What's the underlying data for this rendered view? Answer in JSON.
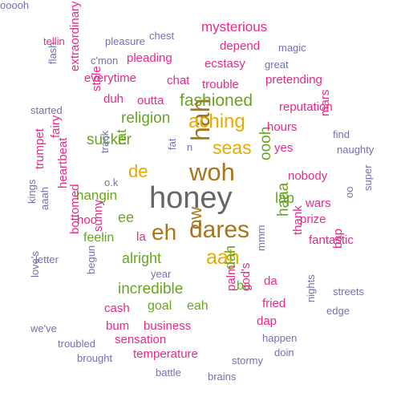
{
  "palette": {
    "magenta": "#e7298a",
    "purple": "#7570b3",
    "green": "#66a61e",
    "gold": "#e6ab02",
    "brown": "#a6761d",
    "gray": "#666666"
  },
  "words": [
    {
      "text": "honey",
      "color": "gray"
    },
    {
      "text": "woh",
      "color": "brown"
    },
    {
      "text": "hah",
      "color": "brown"
    },
    {
      "text": "dares",
      "color": "brown"
    },
    {
      "text": "eh",
      "color": "brown"
    },
    {
      "text": "aah",
      "color": "gold"
    },
    {
      "text": "aching",
      "color": "gold"
    },
    {
      "text": "seas",
      "color": "gold"
    },
    {
      "text": "de",
      "color": "gold"
    },
    {
      "text": "ow",
      "color": "brown"
    },
    {
      "text": "fashioned",
      "color": "green"
    },
    {
      "text": "religion",
      "color": "green"
    },
    {
      "text": "sucker",
      "color": "green"
    },
    {
      "text": "hangin",
      "color": "green"
    },
    {
      "text": "alright",
      "color": "green"
    },
    {
      "text": "incredible",
      "color": "green"
    },
    {
      "text": "haaa",
      "color": "green"
    },
    {
      "text": "oooh",
      "color": "green"
    },
    {
      "text": "dah",
      "color": "green"
    },
    {
      "text": "lap",
      "color": "green"
    },
    {
      "text": "ee",
      "color": "green"
    },
    {
      "text": "feelin",
      "color": "green"
    },
    {
      "text": "ba",
      "color": "green"
    },
    {
      "text": "eah",
      "color": "green"
    },
    {
      "text": "goal",
      "color": "green"
    },
    {
      "text": "rat",
      "color": "green"
    },
    {
      "text": "mysterious",
      "color": "magenta"
    },
    {
      "text": "depend",
      "color": "magenta"
    },
    {
      "text": "pleading",
      "color": "magenta"
    },
    {
      "text": "ecstasy",
      "color": "magenta"
    },
    {
      "text": "everytime",
      "color": "magenta"
    },
    {
      "text": "chat",
      "color": "magenta"
    },
    {
      "text": "trouble",
      "color": "magenta"
    },
    {
      "text": "pretending",
      "color": "magenta"
    },
    {
      "text": "duh",
      "color": "magenta"
    },
    {
      "text": "outta",
      "color": "magenta"
    },
    {
      "text": "reputation",
      "color": "magenta"
    },
    {
      "text": "hours",
      "color": "magenta"
    },
    {
      "text": "yes",
      "color": "magenta"
    },
    {
      "text": "nobody",
      "color": "magenta"
    },
    {
      "text": "wars",
      "color": "magenta"
    },
    {
      "text": "prize",
      "color": "magenta"
    },
    {
      "text": "fantastic",
      "color": "magenta"
    },
    {
      "text": "thank",
      "color": "magenta"
    },
    {
      "text": "hoo",
      "color": "magenta"
    },
    {
      "text": "la",
      "color": "magenta"
    },
    {
      "text": "sunny",
      "color": "magenta"
    },
    {
      "text": "cash",
      "color": "magenta"
    },
    {
      "text": "bum",
      "color": "magenta"
    },
    {
      "text": "business",
      "color": "magenta"
    },
    {
      "text": "sensation",
      "color": "magenta"
    },
    {
      "text": "temperature",
      "color": "magenta"
    },
    {
      "text": "fried",
      "color": "magenta"
    },
    {
      "text": "dap",
      "color": "magenta"
    },
    {
      "text": "da",
      "color": "magenta"
    },
    {
      "text": "palm",
      "color": "magenta"
    },
    {
      "text": "god's",
      "color": "magenta"
    },
    {
      "text": "stole",
      "color": "magenta"
    },
    {
      "text": "extraordinary",
      "color": "magenta"
    },
    {
      "text": "fairy",
      "color": "magenta"
    },
    {
      "text": "trumpet",
      "color": "magenta"
    },
    {
      "text": "heartbeat",
      "color": "magenta"
    },
    {
      "text": "bottomed",
      "color": "magenta"
    },
    {
      "text": "mars",
      "color": "magenta"
    },
    {
      "text": "bap",
      "color": "magenta"
    },
    {
      "text": "tellin",
      "color": "magenta"
    },
    {
      "text": "pleasure",
      "color": "purple"
    },
    {
      "text": "chest",
      "color": "purple"
    },
    {
      "text": "magic",
      "color": "purple"
    },
    {
      "text": "great",
      "color": "purple"
    },
    {
      "text": "c'mon",
      "color": "purple"
    },
    {
      "text": "flash",
      "color": "purple"
    },
    {
      "text": "started",
      "color": "purple"
    },
    {
      "text": "track",
      "color": "purple"
    },
    {
      "text": "o.k",
      "color": "purple"
    },
    {
      "text": "fat",
      "color": "purple"
    },
    {
      "text": "n",
      "color": "purple"
    },
    {
      "text": "find",
      "color": "purple"
    },
    {
      "text": "naughty",
      "color": "purple"
    },
    {
      "text": "kings",
      "color": "purple"
    },
    {
      "text": "aaah",
      "color": "purple"
    },
    {
      "text": "letter",
      "color": "purple"
    },
    {
      "text": "year",
      "color": "purple"
    },
    {
      "text": "mmm",
      "color": "purple"
    },
    {
      "text": "oo",
      "color": "purple"
    },
    {
      "text": "super",
      "color": "purple"
    },
    {
      "text": "streets",
      "color": "purple"
    },
    {
      "text": "edge",
      "color": "purple"
    },
    {
      "text": "nights",
      "color": "purple"
    },
    {
      "text": "love's",
      "color": "purple"
    },
    {
      "text": "begun",
      "color": "purple"
    },
    {
      "text": "we've",
      "color": "purple"
    },
    {
      "text": "troubled",
      "color": "purple"
    },
    {
      "text": "brought",
      "color": "purple"
    },
    {
      "text": "happen",
      "color": "purple"
    },
    {
      "text": "doin",
      "color": "purple"
    },
    {
      "text": "stormy",
      "color": "purple"
    },
    {
      "text": "battle",
      "color": "purple"
    },
    {
      "text": "brains",
      "color": "purple"
    },
    {
      "text": "ooooh",
      "color": "purple"
    }
  ]
}
